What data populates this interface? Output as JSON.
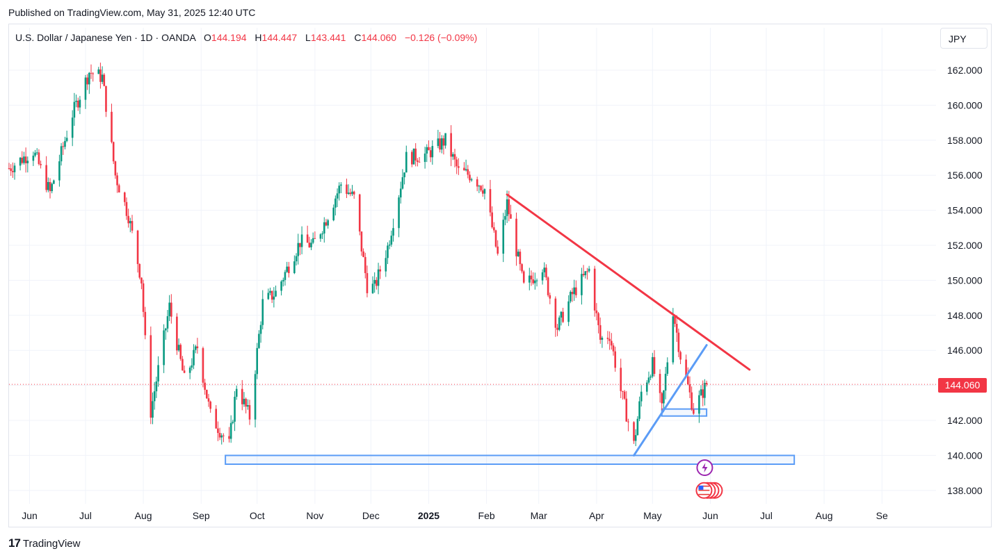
{
  "header": {
    "published": "Published on TradingView.com, May 31, 2025 12:40 UTC"
  },
  "legend": {
    "symbol": "U.S. Dollar / Japanese Yen · 1D · OANDA",
    "open_label": "O",
    "open": "144.194",
    "high_label": "H",
    "high": "144.447",
    "low_label": "L",
    "low": "143.441",
    "close_label": "C",
    "close": "144.060",
    "change": "−0.126 (−0.09%)"
  },
  "currency_button": "JPY",
  "last_price_tag": "144.060",
  "footer": {
    "brand": "TradingView",
    "logo_glyph": "17"
  },
  "colors": {
    "up": "#089981",
    "down": "#f23645",
    "trendline_down": "#f23645",
    "trendline_up": "#5b9cf6",
    "grid": "#f0f3fa"
  },
  "chart_data": {
    "type": "candlestick",
    "ylim": [
      137.2,
      164.0
    ],
    "y_ticks": [
      "162.000",
      "160.000",
      "158.000",
      "156.000",
      "154.000",
      "152.000",
      "150.000",
      "148.000",
      "146.000",
      "144.000",
      "142.000",
      "140.000",
      "138.000"
    ],
    "y_tick_values": [
      162,
      160,
      158,
      156,
      154,
      152,
      150,
      148,
      146,
      144,
      142,
      140,
      138
    ],
    "x_range": [
      "2024-05-21",
      "2025-09-30"
    ],
    "x_ticks": [
      {
        "label": "Jun",
        "date": "2024-06-01"
      },
      {
        "label": "Jul",
        "date": "2024-07-01"
      },
      {
        "label": "Aug",
        "date": "2024-08-01"
      },
      {
        "label": "Sep",
        "date": "2024-09-01"
      },
      {
        "label": "Oct",
        "date": "2024-10-01"
      },
      {
        "label": "Nov",
        "date": "2024-11-01"
      },
      {
        "label": "Dec",
        "date": "2024-12-01"
      },
      {
        "label": "2025",
        "date": "2025-01-01",
        "bold": true
      },
      {
        "label": "Feb",
        "date": "2025-02-01"
      },
      {
        "label": "Mar",
        "date": "2025-03-01"
      },
      {
        "label": "Apr",
        "date": "2025-04-01"
      },
      {
        "label": "May",
        "date": "2025-05-01"
      },
      {
        "label": "Jun",
        "date": "2025-06-01"
      },
      {
        "label": "Jul",
        "date": "2025-07-01"
      },
      {
        "label": "Aug",
        "date": "2025-08-01"
      },
      {
        "label": "Se",
        "date": "2025-09-01"
      }
    ],
    "price_path": [
      [
        "2024-05-21",
        156.4
      ],
      [
        "2024-06-03",
        157.4
      ],
      [
        "2024-06-12",
        155.0
      ],
      [
        "2024-06-24",
        159.5
      ],
      [
        "2024-07-03",
        161.9
      ],
      [
        "2024-07-10",
        161.6
      ],
      [
        "2024-07-17",
        156.0
      ],
      [
        "2024-07-24",
        153.7
      ],
      [
        "2024-07-31",
        150.0
      ],
      [
        "2024-08-02",
        146.5
      ],
      [
        "2024-08-05",
        142.5
      ],
      [
        "2024-08-15",
        148.5
      ],
      [
        "2024-08-23",
        144.3
      ],
      [
        "2024-08-30",
        146.2
      ],
      [
        "2024-09-06",
        142.3
      ],
      [
        "2024-09-16",
        140.6
      ],
      [
        "2024-09-20",
        144.0
      ],
      [
        "2024-09-27",
        142.2
      ],
      [
        "2024-10-04",
        148.7
      ],
      [
        "2024-10-11",
        149.3
      ],
      [
        "2024-10-24",
        152.2
      ],
      [
        "2024-10-31",
        152.0
      ],
      [
        "2024-11-07",
        153.5
      ],
      [
        "2024-11-15",
        155.5
      ],
      [
        "2024-11-22",
        154.7
      ],
      [
        "2024-11-29",
        149.7
      ],
      [
        "2024-12-03",
        149.6
      ],
      [
        "2024-12-10",
        151.9
      ],
      [
        "2024-12-20",
        157.0
      ],
      [
        "2024-12-31",
        157.2
      ],
      [
        "2025-01-10",
        158.0
      ],
      [
        "2025-01-17",
        156.2
      ],
      [
        "2025-01-24",
        156.0
      ],
      [
        "2025-01-31",
        155.2
      ],
      [
        "2025-02-07",
        151.4
      ],
      [
        "2025-02-12",
        154.4
      ],
      [
        "2025-02-21",
        149.6
      ],
      [
        "2025-03-03",
        150.8
      ],
      [
        "2025-03-11",
        147.3
      ],
      [
        "2025-03-19",
        149.2
      ],
      [
        "2025-03-28",
        150.6
      ],
      [
        "2025-04-03",
        146.6
      ],
      [
        "2025-04-08",
        146.9
      ],
      [
        "2025-04-14",
        143.7
      ],
      [
        "2025-04-21",
        140.6
      ],
      [
        "2025-04-25",
        143.6
      ],
      [
        "2025-05-01",
        145.2
      ],
      [
        "2025-05-06",
        142.6
      ],
      [
        "2025-05-12",
        148.3
      ],
      [
        "2025-05-16",
        145.7
      ],
      [
        "2025-05-23",
        142.6
      ],
      [
        "2025-05-30",
        144.06
      ]
    ],
    "trendlines": [
      {
        "name": "descending resistance",
        "color": "#f23645",
        "from": [
          "2025-02-12",
          154.9
        ],
        "to": [
          "2025-06-22",
          144.9
        ]
      },
      {
        "name": "rising support",
        "color": "#5b9cf6",
        "from": [
          "2025-04-21",
          140.0
        ],
        "to": [
          "2025-05-30",
          146.3
        ]
      }
    ],
    "zones": [
      {
        "color": "#5b9cf6",
        "from": [
          "2024-09-14",
          139.5
        ],
        "to": [
          "2025-07-16",
          140.0
        ]
      },
      {
        "color": "#5b9cf6",
        "from": [
          "2025-05-06",
          142.25
        ],
        "to": [
          "2025-05-30",
          142.65
        ]
      }
    ],
    "last_price": 144.06,
    "event_markers": [
      {
        "icon": "lightning-icon",
        "date": "2025-05-29",
        "price": 139.3
      },
      {
        "icon": "us-flag-icon",
        "date": "2025-05-29",
        "price": 138.0
      }
    ]
  }
}
